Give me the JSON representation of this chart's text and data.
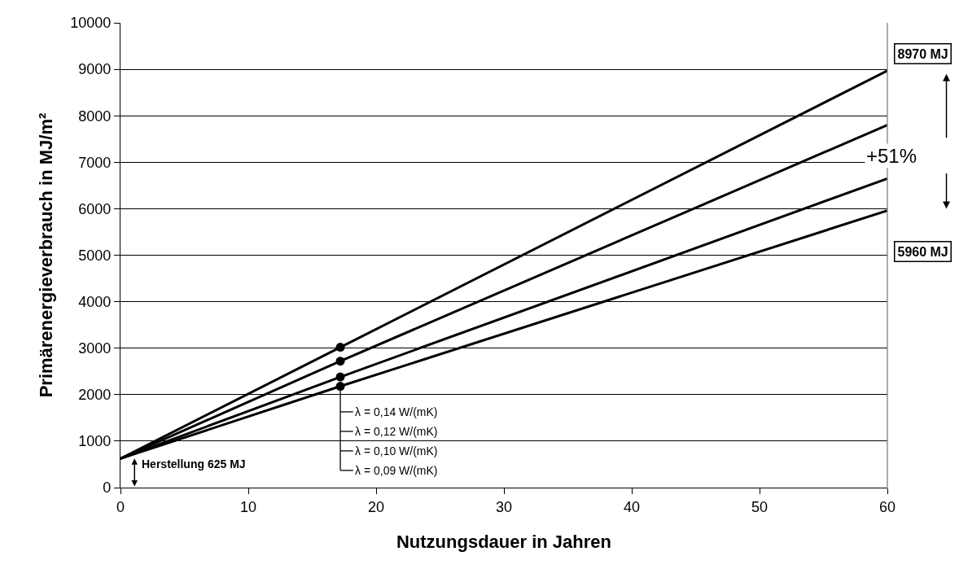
{
  "chart_data": {
    "type": "line",
    "xlabel": "Nutzungsdauer in Jahren",
    "ylabel": "Primärenergieverbrauch in MJ/m²",
    "series": [
      {
        "name": "λ = 0,14 W/(mK)",
        "color": "#000000",
        "x": [
          0,
          17.2,
          60
        ],
        "values": [
          625,
          3020,
          8970
        ]
      },
      {
        "name": "λ = 0,12 W/(mK)",
        "color": "#000000",
        "x": [
          0,
          17.2,
          60
        ],
        "values": [
          625,
          2720,
          7800
        ]
      },
      {
        "name": "λ = 0,10 W/(mK)",
        "color": "#000000",
        "x": [
          0,
          17.2,
          60
        ],
        "values": [
          625,
          2380,
          6650
        ]
      },
      {
        "name": "λ = 0,09 W/(mK)",
        "color": "#000000",
        "x": [
          0,
          17.2,
          60
        ],
        "values": [
          625,
          2180,
          5960
        ]
      },
      {
        "type": "scatter",
        "color": "#000000",
        "marker": "circle",
        "x": [
          17.2,
          17.2,
          17.2,
          17.2
        ],
        "values": [
          3020,
          2720,
          2380,
          2180
        ]
      }
    ],
    "marker": "none",
    "line_style": "solid",
    "xlim": [
      0,
      60
    ],
    "xticks": [
      0,
      10,
      20,
      30,
      40,
      50,
      60
    ],
    "ylim": [
      0,
      10000
    ],
    "yticks": [
      0,
      1000,
      2000,
      3000,
      4000,
      5000,
      6000,
      7000,
      8000,
      9000,
      10000
    ],
    "grid": "y",
    "legend": "bottom",
    "annotations": [
      "8970 MJ",
      "5960 MJ",
      "+51%",
      "Herstellung 625 MJ"
    ]
  }
}
